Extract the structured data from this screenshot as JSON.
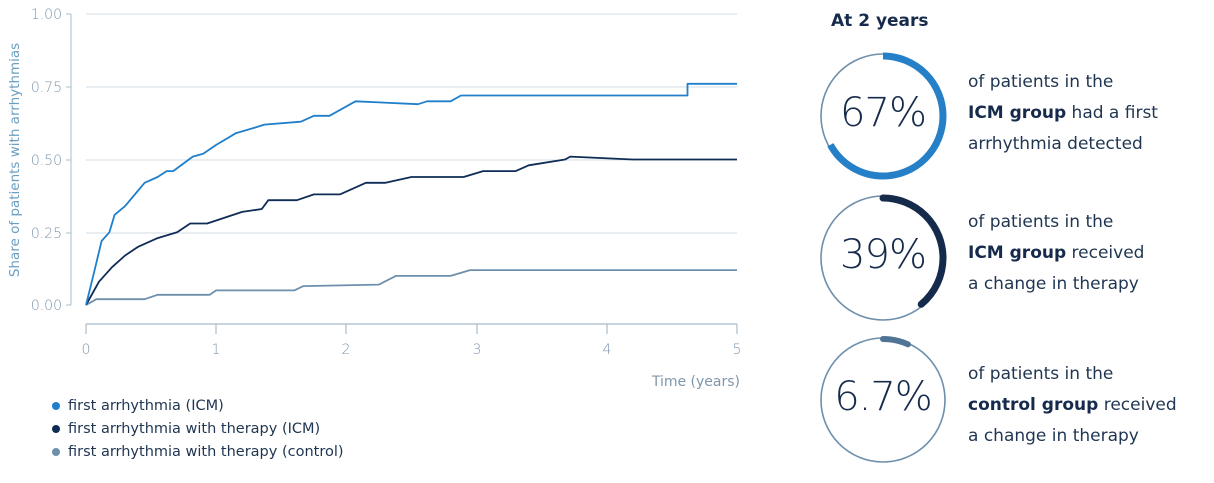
{
  "chart_data": {
    "type": "line",
    "title": "",
    "xlabel": "Time (years)",
    "ylabel": "Share of patients with arrhythmias",
    "xlim": [
      0,
      5
    ],
    "ylim": [
      0,
      1.0
    ],
    "x_ticks": [
      "0",
      "1",
      "2",
      "3",
      "4",
      "5"
    ],
    "y_ticks": [
      "0.00",
      "0.25",
      "0.50",
      "0.75",
      "1.00"
    ],
    "grid": "horizontal",
    "legend_position": "bottom-left",
    "series": [
      {
        "name": "first arrhythmia (ICM)",
        "color": "#1f7fcb",
        "points": [
          [
            0,
            0
          ],
          [
            0.05,
            0.09
          ],
          [
            0.12,
            0.22
          ],
          [
            0.16,
            0.24
          ],
          [
            0.18,
            0.25
          ],
          [
            0.22,
            0.31
          ],
          [
            0.3,
            0.34
          ],
          [
            0.45,
            0.42
          ],
          [
            0.55,
            0.44
          ],
          [
            0.62,
            0.46
          ],
          [
            0.67,
            0.46
          ],
          [
            0.82,
            0.51
          ],
          [
            0.9,
            0.52
          ],
          [
            1.0,
            0.55
          ],
          [
            1.15,
            0.59
          ],
          [
            1.3,
            0.61
          ],
          [
            1.37,
            0.62
          ],
          [
            1.65,
            0.63
          ],
          [
            1.75,
            0.65
          ],
          [
            1.87,
            0.65
          ],
          [
            2.07,
            0.7
          ],
          [
            2.55,
            0.69
          ],
          [
            2.62,
            0.7
          ],
          [
            2.8,
            0.7
          ],
          [
            2.88,
            0.72
          ],
          [
            3.3,
            0.72
          ],
          [
            4.0,
            0.72
          ],
          [
            4.62,
            0.72
          ],
          [
            4.62,
            0.76
          ],
          [
            5.0,
            0.76
          ]
        ]
      },
      {
        "name": "first arrhythmia with therapy (ICM)",
        "color": "#0f2c56",
        "points": [
          [
            0,
            0
          ],
          [
            0.1,
            0.08
          ],
          [
            0.2,
            0.13
          ],
          [
            0.3,
            0.17
          ],
          [
            0.4,
            0.2
          ],
          [
            0.55,
            0.23
          ],
          [
            0.7,
            0.25
          ],
          [
            0.8,
            0.28
          ],
          [
            0.93,
            0.28
          ],
          [
            1.2,
            0.32
          ],
          [
            1.35,
            0.33
          ],
          [
            1.4,
            0.36
          ],
          [
            1.62,
            0.36
          ],
          [
            1.75,
            0.38
          ],
          [
            1.95,
            0.38
          ],
          [
            2.15,
            0.42
          ],
          [
            2.3,
            0.42
          ],
          [
            2.5,
            0.44
          ],
          [
            2.9,
            0.44
          ],
          [
            3.05,
            0.46
          ],
          [
            3.3,
            0.46
          ],
          [
            3.4,
            0.48
          ],
          [
            3.68,
            0.5
          ],
          [
            3.72,
            0.51
          ],
          [
            4.2,
            0.5
          ],
          [
            5.0,
            0.5
          ]
        ]
      },
      {
        "name": "first arrhythmia with therapy (control)",
        "color": "#6e8fab",
        "points": [
          [
            0,
            0
          ],
          [
            0.08,
            0.02
          ],
          [
            0.45,
            0.02
          ],
          [
            0.55,
            0.035
          ],
          [
            0.95,
            0.035
          ],
          [
            1.0,
            0.05
          ],
          [
            1.6,
            0.05
          ],
          [
            1.67,
            0.065
          ],
          [
            2.25,
            0.07
          ],
          [
            2.38,
            0.1
          ],
          [
            2.8,
            0.1
          ],
          [
            2.95,
            0.12
          ],
          [
            5.0,
            0.12
          ]
        ]
      }
    ],
    "annotations": {
      "header": "At 2 years",
      "stats": [
        {
          "value": "67%",
          "fraction": 0.67,
          "color": "#2580c8"
        },
        {
          "value": "39%",
          "fraction": 0.39,
          "color": "#162b4c"
        },
        {
          "value": "6.7%",
          "fraction": 0.067,
          "color": "#4f7495"
        }
      ]
    }
  },
  "axes": {
    "y_title": "Share of patients with arrhythmias",
    "x_title": "Time (years)",
    "y_ticks": [
      "1.00",
      "0.75",
      "0.50",
      "0.25",
      "0.00"
    ],
    "x_ticks": [
      "0",
      "1",
      "2",
      "3",
      "4",
      "5"
    ]
  },
  "legend": [
    {
      "label": "first arrhythmia (ICM)",
      "color": "#1f7fcb"
    },
    {
      "label": "first arrhythmia with therapy (ICM)",
      "color": "#0f2c56"
    },
    {
      "label": "first arrhythmia with therapy (control)",
      "color": "#6e8fab"
    }
  ],
  "panel": {
    "title": "At 2 years",
    "stats": [
      {
        "value": "67%",
        "line1": "of patients in the",
        "bold": "ICM group",
        "rest": " had a first",
        "line3": "arrhythmia detected"
      },
      {
        "value": "39%",
        "line1": "of patients in the",
        "bold": "ICM group",
        "rest": " received",
        "line3": "a change in therapy"
      },
      {
        "value": "6.7%",
        "line1": "of patients in the",
        "bold": "control group",
        "rest": " received",
        "line3": "a change in therapy"
      }
    ]
  },
  "colors": {
    "ring_track": "#6e8fab",
    "grid": "#d3dde6",
    "axis": "#a9bccb"
  }
}
